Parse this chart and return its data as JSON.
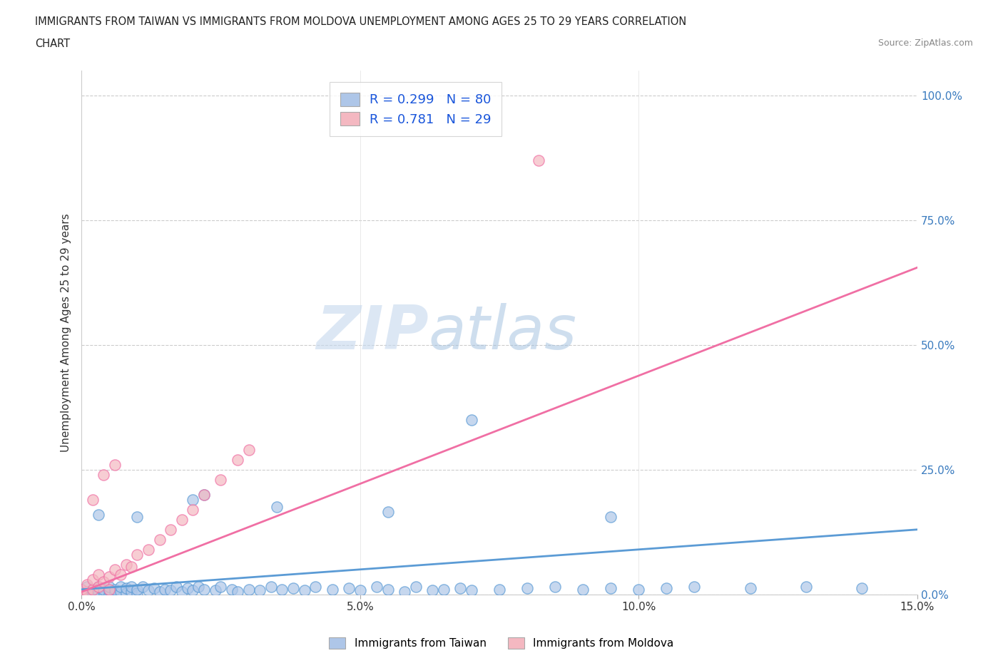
{
  "title_line1": "IMMIGRANTS FROM TAIWAN VS IMMIGRANTS FROM MOLDOVA UNEMPLOYMENT AMONG AGES 25 TO 29 YEARS CORRELATION",
  "title_line2": "CHART",
  "source": "Source: ZipAtlas.com",
  "ylabel": "Unemployment Among Ages 25 to 29 years",
  "xlim": [
    0.0,
    0.15
  ],
  "ylim": [
    0.0,
    1.05
  ],
  "xticks": [
    0.0,
    0.05,
    0.1,
    0.15
  ],
  "xticklabels": [
    "0.0%",
    "5.0%",
    "10.0%",
    "15.0%"
  ],
  "yticks": [
    0.0,
    0.25,
    0.5,
    0.75,
    1.0
  ],
  "yticklabels": [
    "0.0%",
    "25.0%",
    "50.0%",
    "75.0%",
    "100.0%"
  ],
  "taiwan_color": "#aec6e8",
  "moldova_color": "#f4b8c1",
  "taiwan_line_color": "#5b9bd5",
  "moldova_line_color": "#f06fa4",
  "taiwan_R": 0.299,
  "taiwan_N": 80,
  "moldova_R": 0.781,
  "moldova_N": 29,
  "watermark_zip": "ZIP",
  "watermark_atlas": "atlas",
  "background_color": "#ffffff",
  "grid_color": "#cccccc",
  "taiwan_scatter_x": [
    0.0,
    0.0,
    0.0,
    0.001,
    0.001,
    0.001,
    0.002,
    0.002,
    0.002,
    0.003,
    0.003,
    0.003,
    0.004,
    0.004,
    0.005,
    0.005,
    0.005,
    0.006,
    0.006,
    0.007,
    0.007,
    0.008,
    0.008,
    0.009,
    0.009,
    0.01,
    0.01,
    0.011,
    0.012,
    0.013,
    0.014,
    0.015,
    0.016,
    0.017,
    0.018,
    0.019,
    0.02,
    0.021,
    0.022,
    0.024,
    0.025,
    0.027,
    0.028,
    0.03,
    0.032,
    0.034,
    0.036,
    0.038,
    0.04,
    0.042,
    0.045,
    0.048,
    0.05,
    0.053,
    0.055,
    0.058,
    0.06,
    0.063,
    0.065,
    0.068,
    0.07,
    0.075,
    0.08,
    0.085,
    0.09,
    0.095,
    0.1,
    0.105,
    0.11,
    0.12,
    0.13,
    0.14,
    0.022,
    0.035,
    0.055,
    0.07,
    0.095,
    0.02,
    0.01,
    0.003
  ],
  "taiwan_scatter_y": [
    0.0,
    0.005,
    0.01,
    0.0,
    0.005,
    0.015,
    0.0,
    0.005,
    0.01,
    0.0,
    0.005,
    0.015,
    0.005,
    0.01,
    0.0,
    0.008,
    0.015,
    0.003,
    0.01,
    0.005,
    0.015,
    0.003,
    0.012,
    0.005,
    0.015,
    0.003,
    0.01,
    0.015,
    0.008,
    0.012,
    0.005,
    0.01,
    0.008,
    0.015,
    0.005,
    0.012,
    0.008,
    0.015,
    0.01,
    0.008,
    0.015,
    0.01,
    0.005,
    0.01,
    0.008,
    0.015,
    0.01,
    0.012,
    0.008,
    0.015,
    0.01,
    0.012,
    0.008,
    0.015,
    0.01,
    0.005,
    0.015,
    0.008,
    0.01,
    0.012,
    0.008,
    0.01,
    0.012,
    0.015,
    0.01,
    0.012,
    0.01,
    0.012,
    0.015,
    0.012,
    0.015,
    0.013,
    0.2,
    0.175,
    0.165,
    0.35,
    0.155,
    0.19,
    0.155,
    0.16
  ],
  "moldova_scatter_x": [
    0.0,
    0.0,
    0.001,
    0.001,
    0.002,
    0.002,
    0.003,
    0.003,
    0.004,
    0.005,
    0.005,
    0.006,
    0.007,
    0.008,
    0.009,
    0.01,
    0.012,
    0.014,
    0.016,
    0.018,
    0.02,
    0.022,
    0.025,
    0.028,
    0.03,
    0.002,
    0.004,
    0.006,
    0.082
  ],
  "moldova_scatter_y": [
    0.0,
    0.01,
    0.005,
    0.02,
    0.01,
    0.03,
    0.015,
    0.04,
    0.025,
    0.01,
    0.035,
    0.05,
    0.04,
    0.06,
    0.055,
    0.08,
    0.09,
    0.11,
    0.13,
    0.15,
    0.17,
    0.2,
    0.23,
    0.27,
    0.29,
    0.19,
    0.24,
    0.26,
    0.87
  ],
  "moldova_line_x0": 0.0,
  "moldova_line_y0": 0.005,
  "moldova_line_x1": 0.15,
  "moldova_line_y1": 0.655,
  "taiwan_line_x0": 0.0,
  "taiwan_line_y0": 0.01,
  "taiwan_line_x1": 0.15,
  "taiwan_line_y1": 0.13
}
